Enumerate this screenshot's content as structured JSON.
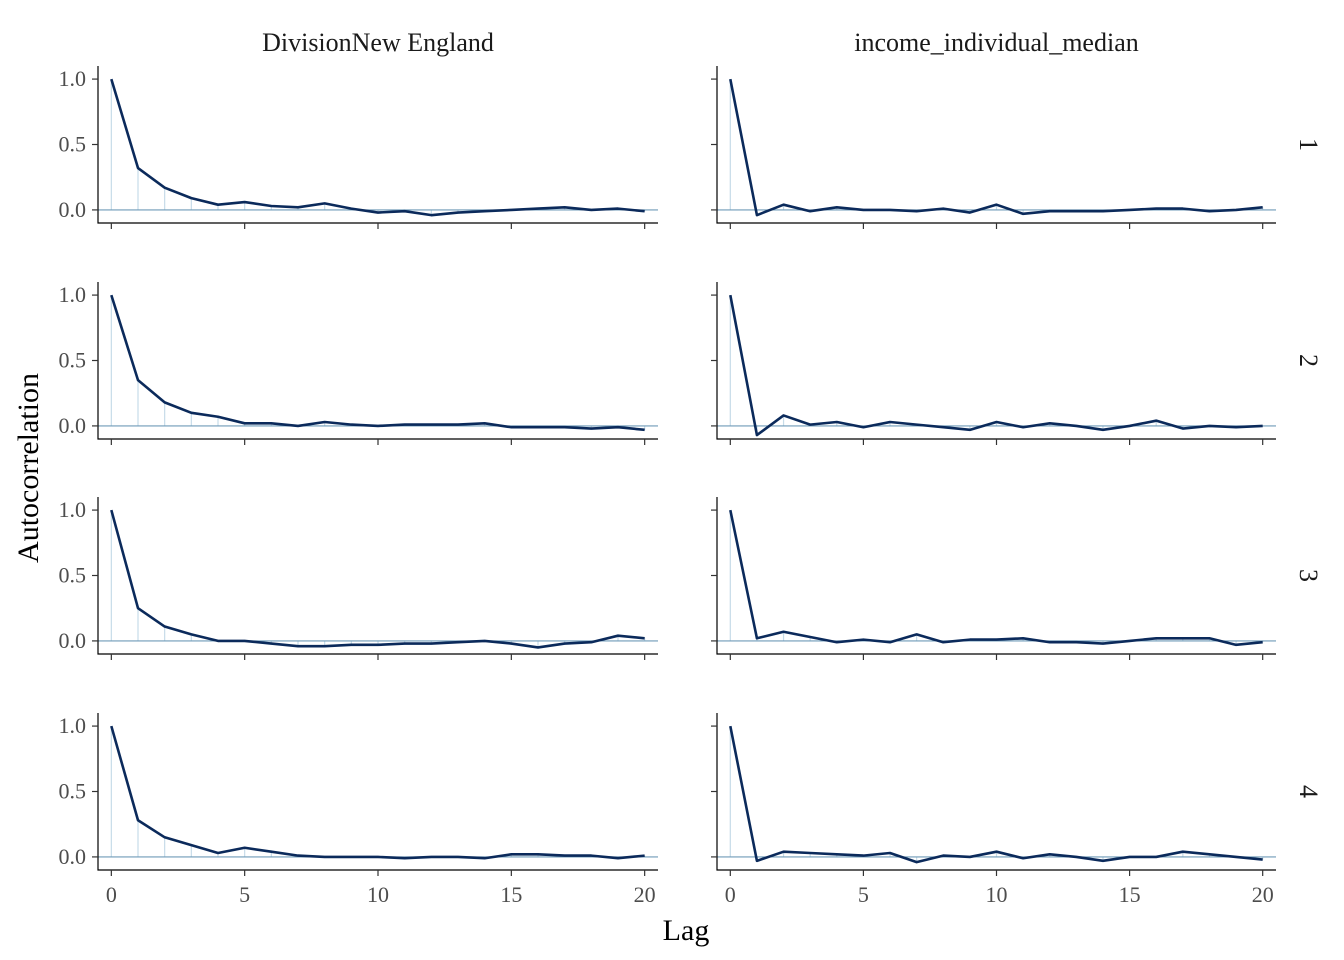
{
  "chart_data": {
    "type": "line",
    "xlabel": "Lag",
    "ylabel": "Autocorrelation",
    "x_ticks": [
      0,
      5,
      10,
      15,
      20
    ],
    "y_ticks": [
      0.0,
      0.5,
      1.0
    ],
    "y_tick_labels": [
      "0.0",
      "0.5",
      "1.0"
    ],
    "xlim": [
      -0.5,
      20.5
    ],
    "ylim": [
      -0.1,
      1.1
    ],
    "lags": [
      0,
      1,
      2,
      3,
      4,
      5,
      6,
      7,
      8,
      9,
      10,
      11,
      12,
      13,
      14,
      15,
      16,
      17,
      18,
      19,
      20
    ],
    "columns": [
      "DivisionNew England",
      "income_individual_median"
    ],
    "rows": [
      "1",
      "2",
      "3",
      "4"
    ],
    "line_color": "#0b2a5b",
    "stem_color": "#c6dbe8",
    "zero_line_color": "#6f9bb8",
    "panels": [
      {
        "row": "1",
        "column": "DivisionNew England",
        "values": [
          1.0,
          0.32,
          0.17,
          0.09,
          0.04,
          0.06,
          0.03,
          0.02,
          0.05,
          0.01,
          -0.02,
          -0.01,
          -0.04,
          -0.02,
          -0.01,
          0.0,
          0.01,
          0.02,
          0.0,
          0.01,
          -0.01
        ]
      },
      {
        "row": "1",
        "column": "income_individual_median",
        "values": [
          1.0,
          -0.04,
          0.04,
          -0.01,
          0.02,
          0.0,
          0.0,
          -0.01,
          0.01,
          -0.02,
          0.04,
          -0.03,
          -0.01,
          -0.01,
          -0.01,
          0.0,
          0.01,
          0.01,
          -0.01,
          0.0,
          0.02
        ]
      },
      {
        "row": "2",
        "column": "DivisionNew England",
        "values": [
          1.0,
          0.35,
          0.18,
          0.1,
          0.07,
          0.02,
          0.02,
          0.0,
          0.03,
          0.01,
          0.0,
          0.01,
          0.01,
          0.01,
          0.02,
          -0.01,
          -0.01,
          -0.01,
          -0.02,
          -0.01,
          -0.03
        ]
      },
      {
        "row": "2",
        "column": "income_individual_median",
        "values": [
          1.0,
          -0.07,
          0.08,
          0.01,
          0.03,
          -0.01,
          0.03,
          0.01,
          -0.01,
          -0.03,
          0.03,
          -0.01,
          0.02,
          0.0,
          -0.03,
          0.0,
          0.04,
          -0.02,
          0.0,
          -0.01,
          0.0
        ]
      },
      {
        "row": "3",
        "column": "DivisionNew England",
        "values": [
          1.0,
          0.25,
          0.11,
          0.05,
          0.0,
          0.0,
          -0.02,
          -0.04,
          -0.04,
          -0.03,
          -0.03,
          -0.02,
          -0.02,
          -0.01,
          0.0,
          -0.02,
          -0.05,
          -0.02,
          -0.01,
          0.04,
          0.02
        ]
      },
      {
        "row": "3",
        "column": "income_individual_median",
        "values": [
          1.0,
          0.02,
          0.07,
          0.03,
          -0.01,
          0.01,
          -0.01,
          0.05,
          -0.01,
          0.01,
          0.01,
          0.02,
          -0.01,
          -0.01,
          -0.02,
          0.0,
          0.02,
          0.02,
          0.02,
          -0.03,
          -0.01
        ]
      },
      {
        "row": "4",
        "column": "DivisionNew England",
        "values": [
          1.0,
          0.28,
          0.15,
          0.09,
          0.03,
          0.07,
          0.04,
          0.01,
          0.0,
          0.0,
          0.0,
          -0.01,
          0.0,
          0.0,
          -0.01,
          0.02,
          0.02,
          0.01,
          0.01,
          -0.01,
          0.01
        ]
      },
      {
        "row": "4",
        "column": "income_individual_median",
        "values": [
          1.0,
          -0.03,
          0.04,
          0.03,
          0.02,
          0.01,
          0.03,
          -0.04,
          0.01,
          0.0,
          0.04,
          -0.01,
          0.02,
          0.0,
          -0.03,
          0.0,
          0.0,
          0.04,
          0.02,
          0.0,
          -0.02
        ]
      }
    ]
  }
}
